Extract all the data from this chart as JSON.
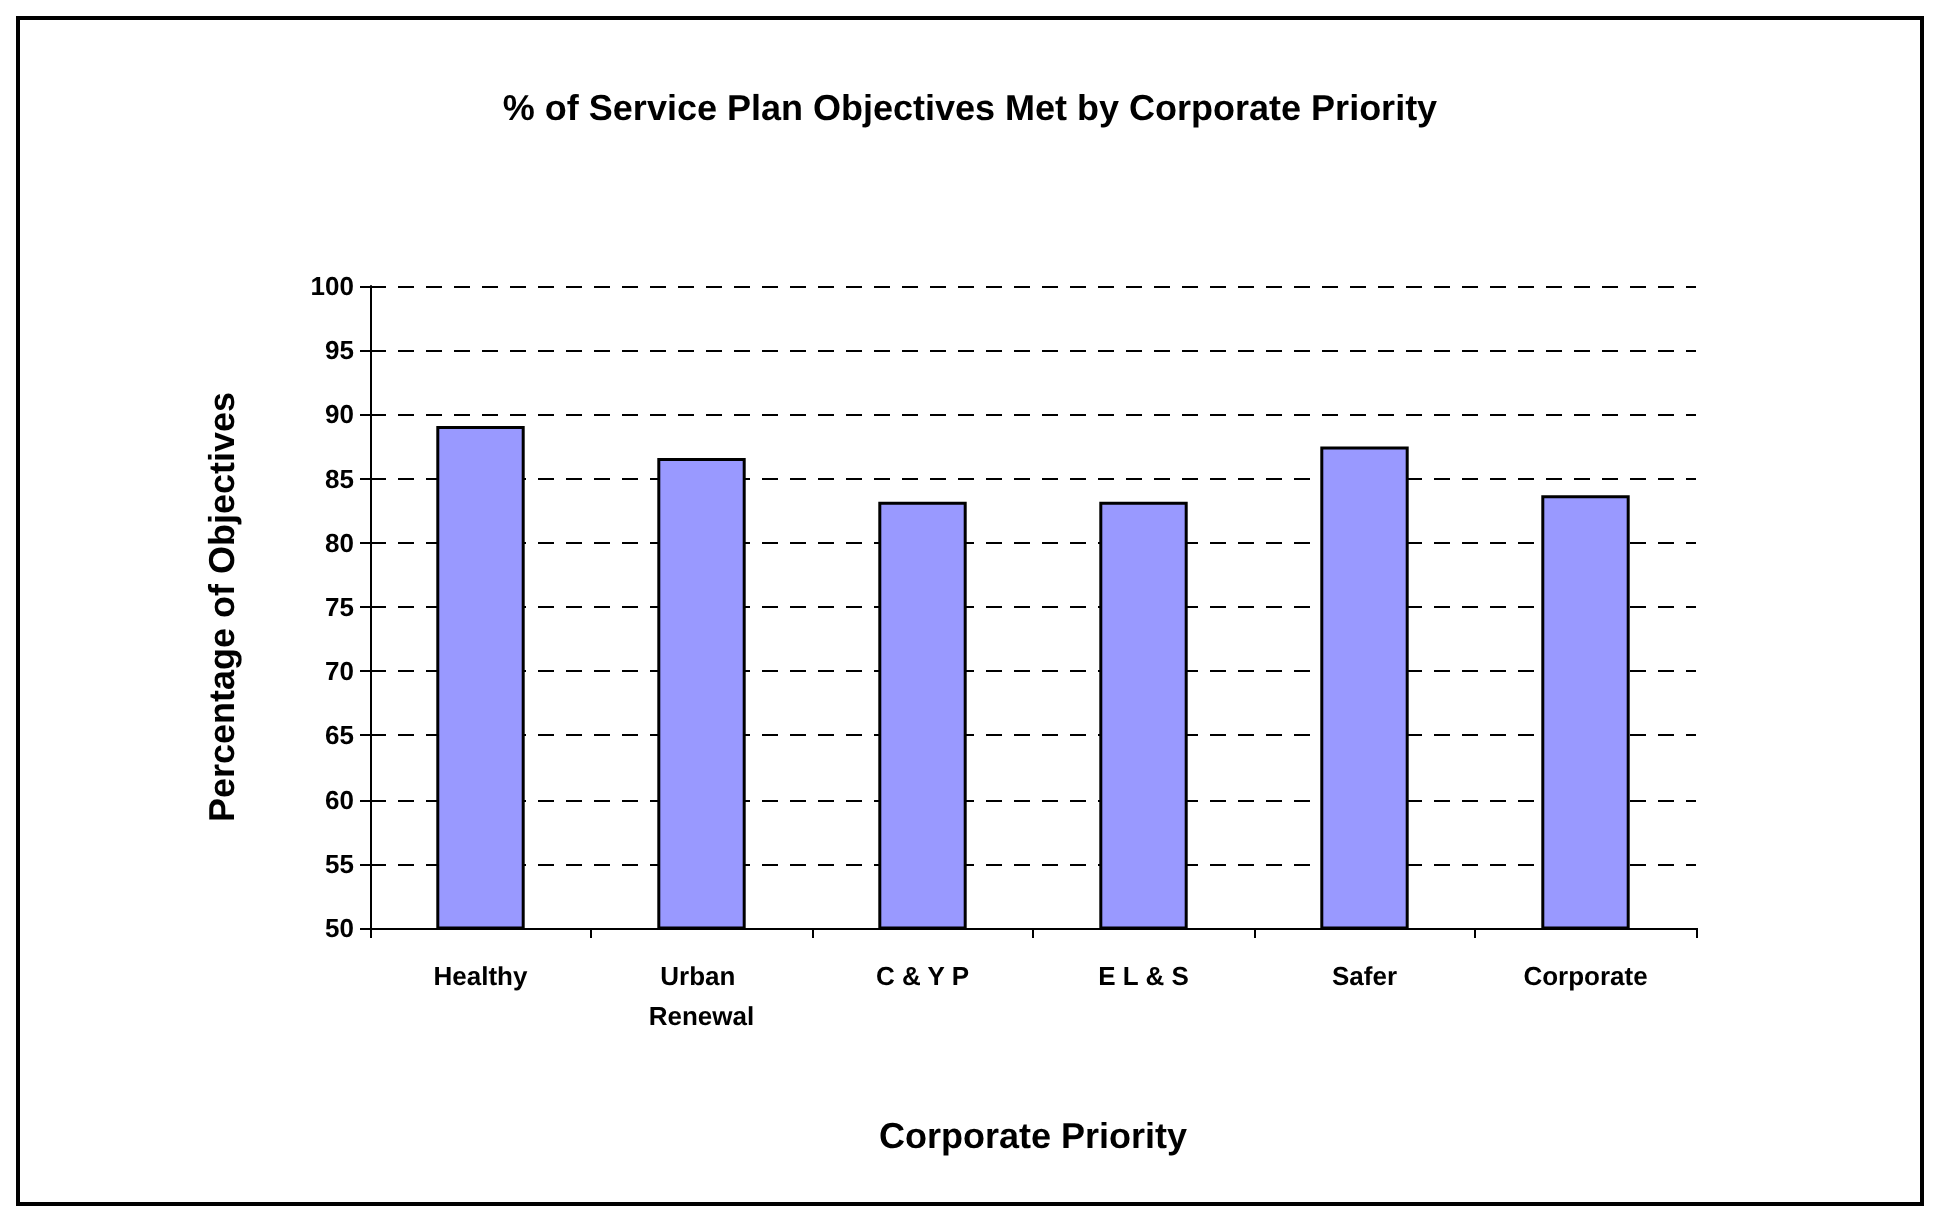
{
  "chart_data": {
    "type": "bar",
    "title": "% of Service Plan Objectives Met by Corporate Priority",
    "xlabel": "Corporate Priority",
    "ylabel": "Percentage of Objectives",
    "categories": [
      "Healthy",
      "Urban Renewal",
      "C & Y P",
      "E L & S",
      "Safer",
      "Corporate"
    ],
    "values": [
      89.1,
      86.6,
      83.2,
      83.2,
      87.5,
      83.7
    ],
    "color": "#9999ff",
    "ylim": [
      50,
      100
    ],
    "yticks": [
      50,
      55,
      60,
      65,
      70,
      75,
      80,
      85,
      90,
      95,
      100
    ],
    "grid": "y"
  }
}
